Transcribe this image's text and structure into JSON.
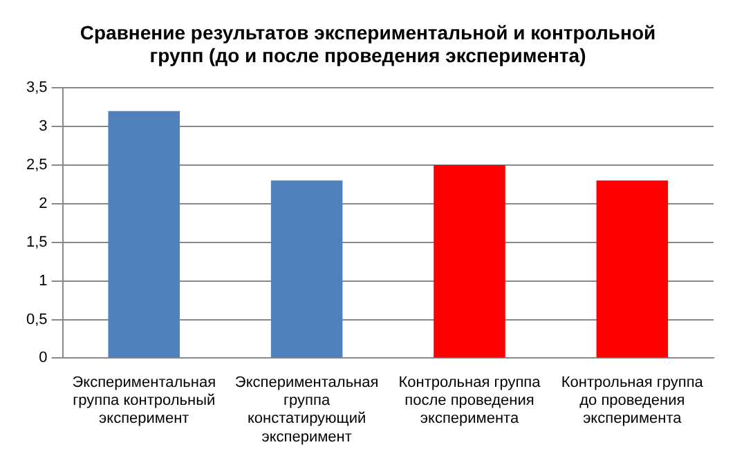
{
  "chart_data": {
    "type": "bar",
    "title": "Сравнение результатов экспериментальной и контрольной групп (до и после проведения эксперимента)",
    "categories": [
      "Экспериментальная группа контрольный эксперимент",
      "Экспериментальная группа констатирующий эксперимент",
      "Контрольная группа после проведения эксперимента",
      "Контрольная группа до проведения эксперимента"
    ],
    "values": [
      3.2,
      2.3,
      2.5,
      2.3
    ],
    "colors": [
      "#4f81bd",
      "#4f81bd",
      "#ff0000",
      "#ff0000"
    ],
    "ylim": [
      0,
      3.5
    ],
    "yticks": [
      0,
      {
        "value": 0.5,
        "label": "0,5"
      },
      1,
      {
        "value": 1.5,
        "label": "1,5"
      },
      2,
      {
        "value": 2.5,
        "label": "2,5"
      },
      3,
      {
        "value": 3.5,
        "label": "3,5"
      }
    ],
    "grid": "y",
    "legend": false
  }
}
